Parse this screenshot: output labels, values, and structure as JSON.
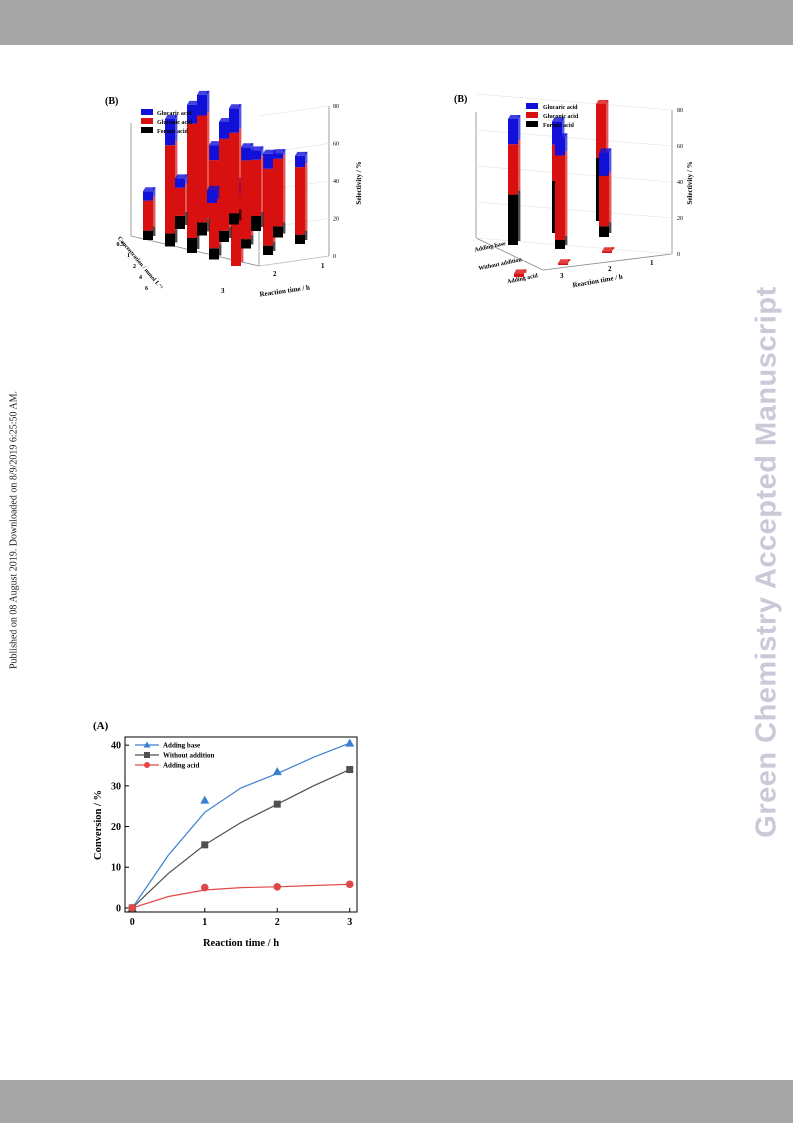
{
  "side_note": "Published on 08 August 2019. Downloaded on 8/9/2019 6:25:50 AM.",
  "watermark": "Green Chemistry Accepted Manuscript",
  "colors": {
    "glucaric": "#1010d8",
    "gluconic": "#d81010",
    "formic": "#000000",
    "band": "#a6a6a6",
    "adding_base": "#3a7fd0",
    "without_addition": "#505050",
    "adding_acid": "#e04848"
  },
  "chart_data": [
    {
      "type": "bar",
      "panel_label": "(B)",
      "projection": "3d",
      "legend": [
        "Glucaric acid",
        "Gluconic acid",
        "Formic acid"
      ],
      "x_axis": {
        "label": "Reaction time / h",
        "ticks": [
          "1",
          "2",
          "3"
        ]
      },
      "depth_axis": {
        "label": "Concentration / mmol L⁻¹",
        "ticks": [
          "0.5",
          "1",
          "2",
          "4",
          "6"
        ]
      },
      "z_axis": {
        "label": "Selectivity / %",
        "ticks": [
          "0",
          "20",
          "40",
          "60",
          "80"
        ],
        "range": [
          0,
          80
        ]
      },
      "categories_time": [
        1,
        2,
        3
      ],
      "categories_concentration": [
        "0.5",
        "1",
        "2",
        "4",
        "6"
      ],
      "values": [
        {
          "time": 3,
          "concentration": "0.5",
          "formic": 0,
          "gluconic": 8,
          "glucaric": 7
        },
        {
          "time": 3,
          "concentration": "1",
          "formic": 6,
          "gluconic": 43,
          "glucaric": 13
        },
        {
          "time": 3,
          "concentration": "2",
          "formic": 8,
          "gluconic": 30,
          "glucaric": 5
        },
        {
          "time": 3,
          "concentration": "4",
          "formic": 6,
          "gluconic": 36,
          "glucaric": 3
        },
        {
          "time": 3,
          "concentration": "6",
          "formic": 5,
          "gluconic": 36,
          "glucaric": 6
        },
        {
          "time": 2,
          "concentration": "0.5",
          "formic": 7,
          "gluconic": 15,
          "glucaric": 5
        },
        {
          "time": 2,
          "concentration": "1",
          "formic": 7,
          "gluconic": 57,
          "glucaric": 11
        },
        {
          "time": 2,
          "concentration": "2",
          "formic": 6,
          "gluconic": 49,
          "glucaric": 9
        },
        {
          "time": 2,
          "concentration": "4",
          "formic": 5,
          "gluconic": 42,
          "glucaric": 7
        },
        {
          "time": 2,
          "concentration": "6",
          "formic": 5,
          "gluconic": 41,
          "glucaric": 8
        },
        {
          "time": 1,
          "concentration": "0.5",
          "formic": 5,
          "gluconic": 16,
          "glucaric": 5
        },
        {
          "time": 1,
          "concentration": "1",
          "formic": 7,
          "gluconic": 47,
          "glucaric": 14
        },
        {
          "time": 1,
          "concentration": "2",
          "formic": 8,
          "gluconic": 61,
          "glucaric": 10
        },
        {
          "time": 1,
          "concentration": "4",
          "formic": 6,
          "gluconic": 47,
          "glucaric": 8
        },
        {
          "time": 1,
          "concentration": "6",
          "formic": 0,
          "gluconic": 38,
          "glucaric": 7
        }
      ]
    },
    {
      "type": "bar",
      "panel_label": "(B)",
      "projection": "3d",
      "legend": [
        "Glucaric acid",
        "Gluconic acid",
        "Formic acid"
      ],
      "x_axis": {
        "label": "Reaction time / h",
        "ticks": [
          "1",
          "2",
          "3"
        ]
      },
      "depth_axis": {
        "label": "",
        "ticks": [
          "Adding base",
          "Without addition",
          "Adding acid"
        ]
      },
      "z_axis": {
        "label": "Selectivity / %",
        "ticks": [
          "0",
          "20",
          "40",
          "60",
          "80"
        ],
        "range": [
          0,
          80
        ]
      },
      "values": [
        {
          "time": 3,
          "condition": "Adding base",
          "formic": 35,
          "gluconic": 30,
          "glucaric": 0
        },
        {
          "time": 3,
          "condition": "Without addition",
          "formic": 6,
          "gluconic": 28,
          "glucaric": 13
        },
        {
          "time": 3,
          "condition": "Adding acid",
          "formic": 0,
          "gluconic": 1,
          "glucaric": 0
        },
        {
          "time": 2,
          "condition": "Adding base",
          "formic": 29,
          "gluconic": 20,
          "glucaric": 13
        },
        {
          "time": 2,
          "condition": "Without addition",
          "formic": 5,
          "gluconic": 47,
          "glucaric": 10
        },
        {
          "time": 2,
          "condition": "Adding acid",
          "formic": 0,
          "gluconic": 1,
          "glucaric": 0
        },
        {
          "time": 1,
          "condition": "Adding base",
          "formic": 28,
          "gluconic": 28,
          "glucaric": 14
        },
        {
          "time": 1,
          "condition": "Without addition",
          "formic": 0,
          "gluconic": 0,
          "glucaric": 0
        },
        {
          "time": 1,
          "condition": "Adding acid",
          "formic": 0,
          "gluconic": 2,
          "glucaric": 0
        }
      ]
    },
    {
      "type": "scatter",
      "panel_label": "(A)",
      "xlabel": "Reaction time / h",
      "ylabel": "Conversion / %",
      "xlim": [
        -0.1,
        3.1
      ],
      "ylim": [
        -1,
        42
      ],
      "xticks": [
        0,
        1,
        2,
        3
      ],
      "yticks": [
        0,
        10,
        20,
        30,
        40
      ],
      "legend": {
        "position": "top-left"
      },
      "series": [
        {
          "name": "Adding base",
          "marker": "triangle",
          "x": [
            0,
            1,
            2,
            3
          ],
          "y": [
            0,
            26.5,
            33.5,
            40.5
          ],
          "fit": [
            [
              0,
              0
            ],
            [
              0.5,
              13
            ],
            [
              1,
              23.5
            ],
            [
              1.5,
              29.5
            ],
            [
              2,
              33
            ],
            [
              2.5,
              37
            ],
            [
              3,
              40.5
            ]
          ]
        },
        {
          "name": "Without addition",
          "marker": "square",
          "x": [
            0,
            1,
            2,
            3
          ],
          "y": [
            0,
            15.5,
            25.5,
            34
          ],
          "fit": [
            [
              0,
              0
            ],
            [
              0.5,
              8.5
            ],
            [
              1,
              15.5
            ],
            [
              1.5,
              21
            ],
            [
              2,
              25.5
            ],
            [
              2.5,
              30
            ],
            [
              3,
              34
            ]
          ]
        },
        {
          "name": "Adding acid",
          "marker": "circle",
          "x": [
            0,
            1,
            2,
            3
          ],
          "y": [
            0,
            5,
            5.2,
            5.8
          ],
          "fit": [
            [
              0,
              0
            ],
            [
              0.5,
              2.8
            ],
            [
              1,
              4.4
            ],
            [
              1.5,
              5
            ],
            [
              2,
              5.2
            ],
            [
              2.5,
              5.5
            ],
            [
              3,
              5.8
            ]
          ]
        }
      ]
    }
  ]
}
